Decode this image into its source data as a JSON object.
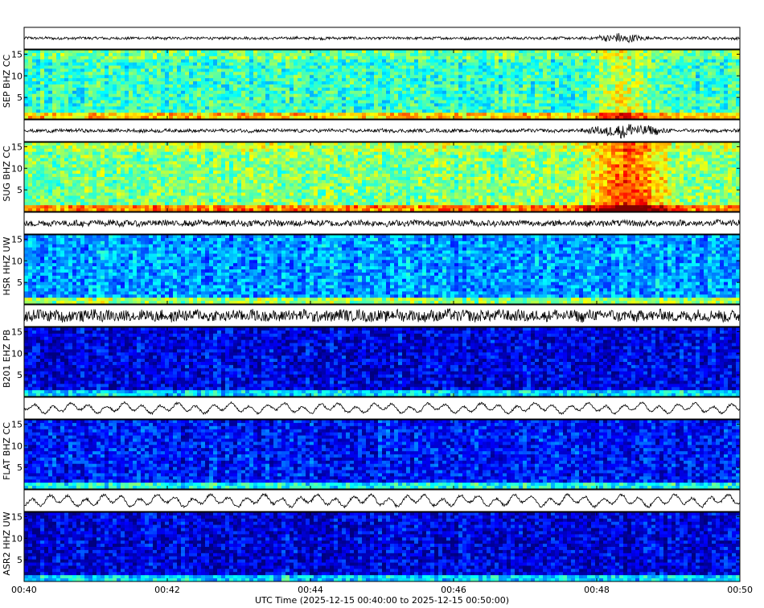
{
  "chart_data": {
    "type": "spectrogram",
    "xlabel": "UTC Time (2025-12-15 00:40:00 to 2025-12-15 00:50:00)",
    "x_ticks": [
      "00:40",
      "00:42",
      "00:44",
      "00:46",
      "00:48",
      "00:50"
    ],
    "xlim": [
      "00:40",
      "00:50"
    ],
    "y_ticks": [
      5,
      10,
      15
    ],
    "ylim": [
      0,
      16
    ],
    "colormap": "jet",
    "stations": [
      {
        "label": "SEP BHZ CC",
        "trace_amp": 0.18,
        "base_level": 0.42,
        "burst": {
          "start": "00:47:55",
          "end": "00:48:45",
          "intensity": 0.25,
          "trace_gain": 3.0
        }
      },
      {
        "label": "SUG BHZ CC",
        "trace_amp": 0.22,
        "base_level": 0.5,
        "burst": {
          "start": "00:47:45",
          "end": "00:49:05",
          "intensity": 0.4,
          "trace_gain": 3.5
        }
      },
      {
        "label": "HSR HHZ UW",
        "trace_amp": 0.4,
        "base_level": 0.28,
        "burst": null
      },
      {
        "label": "B201 EHZ PB",
        "trace_amp": 0.75,
        "base_level": 0.1,
        "burst": null
      },
      {
        "label": "FLAT BHZ CC",
        "trace_amp": 0.6,
        "base_level": 0.14,
        "burst": null
      },
      {
        "label": "ASR2 HHZ UW",
        "trace_amp": 0.7,
        "base_level": 0.09,
        "burst": null
      }
    ]
  }
}
